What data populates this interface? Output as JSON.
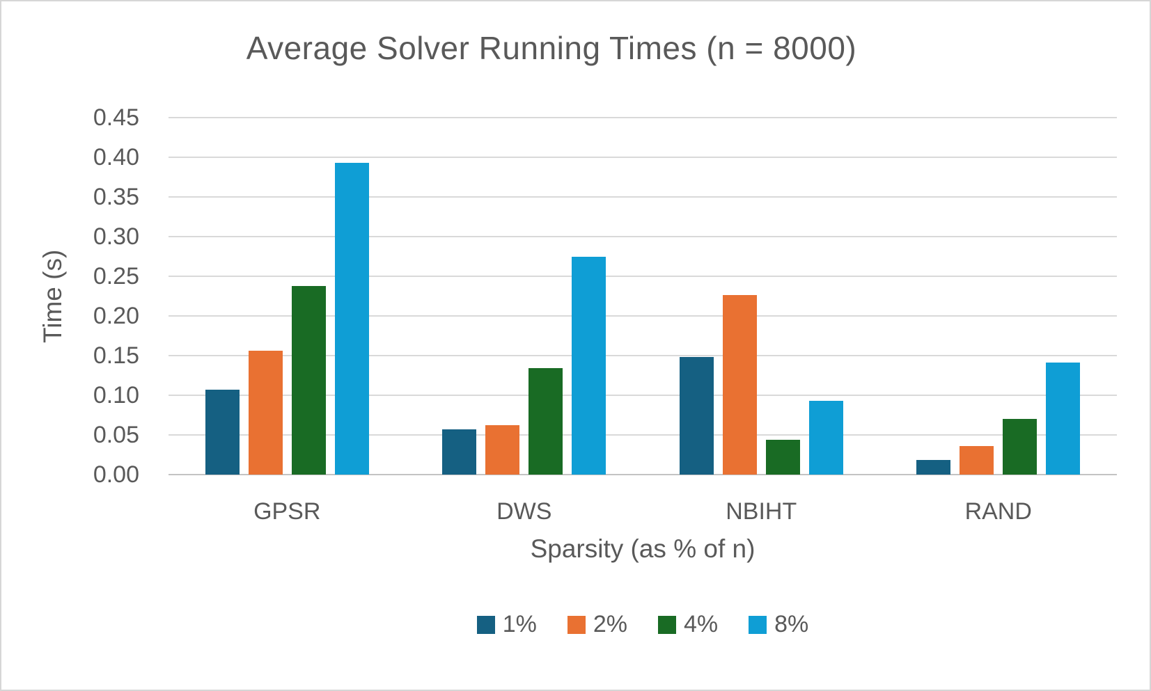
{
  "chart_data": {
    "type": "bar",
    "title": "Average Solver Running Times (n = 8000)",
    "xlabel": "Sparsity (as % of n)",
    "ylabel": "Time (s)",
    "categories": [
      "GPSR",
      "DWS",
      "NBIHT",
      "RAND"
    ],
    "series": [
      {
        "name": "1%",
        "color": "#156082",
        "values": [
          0.107,
          0.057,
          0.148,
          0.018
        ]
      },
      {
        "name": "2%",
        "color": "#E97132",
        "values": [
          0.156,
          0.062,
          0.226,
          0.036
        ]
      },
      {
        "name": "4%",
        "color": "#196B24",
        "values": [
          0.238,
          0.134,
          0.044,
          0.07
        ]
      },
      {
        "name": "8%",
        "color": "#0F9ED5",
        "values": [
          0.393,
          0.275,
          0.093,
          0.141
        ]
      }
    ],
    "ylim": [
      0,
      0.45
    ],
    "ytick_step": 0.05,
    "y_ticks": [
      "0.00",
      "0.05",
      "0.10",
      "0.15",
      "0.20",
      "0.25",
      "0.30",
      "0.35",
      "0.40",
      "0.45"
    ],
    "grid": true,
    "legend_position": "bottom",
    "grid_color": "#d9d9d9",
    "axis_line_color": "#c3c3c3",
    "text_color": "#595959",
    "background_color": "#ffffff",
    "border_color": "#d6d6d6"
  }
}
